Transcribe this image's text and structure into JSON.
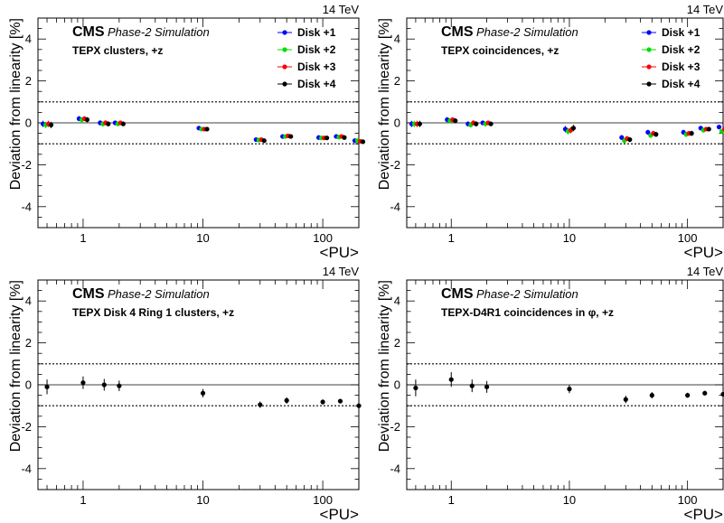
{
  "chart_data": [
    {
      "type": "scatter",
      "energy": "14 TeV",
      "experiment": "CMS",
      "status": "Phase-2 Simulation",
      "label": "TEPX clusters, +z",
      "xlabel": "<PU>",
      "ylabel": "Deviation from linearity [%]",
      "xscale": "log",
      "xlim": [
        0.42,
        200
      ],
      "ylim": [
        -5,
        5
      ],
      "yticks": [
        -4,
        -2,
        0,
        2,
        4
      ],
      "xticks": [
        1,
        10,
        100
      ],
      "bands": [
        -1,
        1
      ],
      "legend_position": "top-right",
      "series": [
        {
          "name": "Disk +1",
          "color": "#0000ff",
          "x": [
            0.5,
            1,
            1.5,
            2,
            10,
            30,
            50,
            100,
            140,
            200
          ],
          "y": [
            -0.05,
            0.2,
            0.0,
            0.0,
            -0.25,
            -0.8,
            -0.65,
            -0.7,
            -0.65,
            -0.85
          ],
          "err": [
            0.15,
            0.12,
            0.12,
            0.1,
            0.1,
            0.06,
            0.05,
            0.05,
            0.05,
            0.05
          ]
        },
        {
          "name": "Disk +2",
          "color": "#00dd00",
          "x": [
            0.5,
            1,
            1.5,
            2,
            10,
            30,
            50,
            100,
            140,
            200
          ],
          "y": [
            -0.1,
            0.15,
            -0.05,
            -0.05,
            -0.3,
            -0.82,
            -0.65,
            -0.72,
            -0.68,
            -0.85
          ],
          "err": [
            0.15,
            0.12,
            0.12,
            0.1,
            0.1,
            0.06,
            0.05,
            0.05,
            0.05,
            0.05
          ]
        },
        {
          "name": "Disk +3",
          "color": "#ff0000",
          "x": [
            0.5,
            1,
            1.5,
            2,
            10,
            30,
            50,
            100,
            140,
            200
          ],
          "y": [
            -0.05,
            0.2,
            0.0,
            0.0,
            -0.3,
            -0.8,
            -0.62,
            -0.72,
            -0.65,
            -0.88
          ],
          "err": [
            0.15,
            0.12,
            0.12,
            0.1,
            0.1,
            0.06,
            0.05,
            0.05,
            0.05,
            0.05
          ]
        },
        {
          "name": "Disk +4",
          "color": "#000000",
          "x": [
            0.5,
            1,
            1.5,
            2,
            10,
            30,
            50,
            100,
            140,
            200
          ],
          "y": [
            -0.1,
            0.15,
            -0.05,
            -0.05,
            -0.3,
            -0.85,
            -0.65,
            -0.72,
            -0.7,
            -0.9
          ],
          "err": [
            0.15,
            0.12,
            0.12,
            0.1,
            0.1,
            0.06,
            0.05,
            0.05,
            0.05,
            0.05
          ]
        }
      ]
    },
    {
      "type": "scatter",
      "energy": "14 TeV",
      "experiment": "CMS",
      "status": "Phase-2 Simulation",
      "label": "TEPX coincidences, +z",
      "xlabel": "<PU>",
      "ylabel": "Deviation from linearity [%]",
      "xscale": "log",
      "xlim": [
        0.42,
        200
      ],
      "ylim": [
        -5,
        5
      ],
      "yticks": [
        -4,
        -2,
        0,
        2,
        4
      ],
      "xticks": [
        1,
        10,
        100
      ],
      "bands": [
        -1,
        1
      ],
      "legend_position": "top-right",
      "series": [
        {
          "name": "Disk +1",
          "color": "#0000ff",
          "x": [
            0.5,
            1,
            1.5,
            2,
            10,
            30,
            50,
            100,
            140,
            200
          ],
          "y": [
            -0.05,
            0.15,
            -0.05,
            0.0,
            -0.3,
            -0.7,
            -0.45,
            -0.45,
            -0.25,
            -0.2
          ],
          "err": [
            0.15,
            0.12,
            0.12,
            0.1,
            0.15,
            0.12,
            0.12,
            0.12,
            0.1,
            0.1
          ]
        },
        {
          "name": "Disk +2",
          "color": "#00dd00",
          "x": [
            0.5,
            1,
            1.5,
            2,
            10,
            30,
            50,
            100,
            140,
            200
          ],
          "y": [
            -0.05,
            0.1,
            -0.1,
            -0.05,
            -0.4,
            -0.85,
            -0.6,
            -0.55,
            -0.35,
            -0.4
          ],
          "err": [
            0.15,
            0.12,
            0.12,
            0.1,
            0.15,
            0.12,
            0.12,
            0.12,
            0.1,
            0.1
          ]
        },
        {
          "name": "Disk +3",
          "color": "#ff0000",
          "x": [
            0.5,
            1,
            1.5,
            2,
            10,
            30,
            50,
            100,
            140,
            200
          ],
          "y": [
            -0.05,
            0.15,
            0.0,
            0.0,
            -0.35,
            -0.75,
            -0.5,
            -0.5,
            -0.3,
            -0.3
          ],
          "err": [
            0.15,
            0.12,
            0.12,
            0.1,
            0.15,
            0.12,
            0.12,
            0.12,
            0.1,
            0.1
          ]
        },
        {
          "name": "Disk +4",
          "color": "#000000",
          "x": [
            0.5,
            1,
            1.5,
            2,
            10,
            30,
            50,
            100,
            140,
            200
          ],
          "y": [
            -0.05,
            0.1,
            -0.05,
            -0.05,
            -0.25,
            -0.8,
            -0.55,
            -0.5,
            -0.3,
            -0.25
          ],
          "err": [
            0.15,
            0.12,
            0.12,
            0.1,
            0.15,
            0.12,
            0.12,
            0.12,
            0.1,
            0.1
          ]
        }
      ]
    },
    {
      "type": "scatter",
      "energy": "14 TeV",
      "experiment": "CMS",
      "status": "Phase-2 Simulation",
      "label": "TEPX Disk 4 Ring 1 clusters, +z",
      "xlabel": "<PU>",
      "ylabel": "Deviation from linearity [%]",
      "xscale": "log",
      "xlim": [
        0.42,
        200
      ],
      "ylim": [
        -5,
        5
      ],
      "yticks": [
        -4,
        -2,
        0,
        2,
        4
      ],
      "xticks": [
        1,
        10,
        100
      ],
      "bands": [
        -1,
        1
      ],
      "series": [
        {
          "color": "#000000",
          "x": [
            0.5,
            1,
            1.5,
            2,
            10,
            30,
            50,
            100,
            140,
            200
          ],
          "y": [
            -0.1,
            0.1,
            0.0,
            -0.05,
            -0.4,
            -0.95,
            -0.75,
            -0.82,
            -0.78,
            -1.0
          ],
          "err": [
            0.35,
            0.3,
            0.28,
            0.25,
            0.2,
            0.15,
            0.15,
            0.12,
            0.1,
            0.1
          ]
        }
      ]
    },
    {
      "type": "scatter",
      "energy": "14 TeV",
      "experiment": "CMS",
      "status": "Phase-2 Simulation",
      "label": "TEPX-D4R1 coincidences in φ, +z",
      "xlabel": "<PU>",
      "ylabel": "Deviation from linearity [%]",
      "xscale": "log",
      "xlim": [
        0.42,
        200
      ],
      "ylim": [
        -5,
        5
      ],
      "yticks": [
        -4,
        -2,
        0,
        2,
        4
      ],
      "xticks": [
        1,
        10,
        100
      ],
      "bands": [
        -1,
        1
      ],
      "series": [
        {
          "color": "#000000",
          "x": [
            0.5,
            1,
            1.5,
            2,
            10,
            30,
            50,
            100,
            140,
            200
          ],
          "y": [
            -0.15,
            0.25,
            -0.05,
            -0.1,
            -0.2,
            -0.7,
            -0.5,
            -0.5,
            -0.4,
            -0.45
          ],
          "err": [
            0.4,
            0.35,
            0.3,
            0.28,
            0.2,
            0.18,
            0.15,
            0.12,
            0.1,
            0.1
          ]
        }
      ]
    }
  ]
}
